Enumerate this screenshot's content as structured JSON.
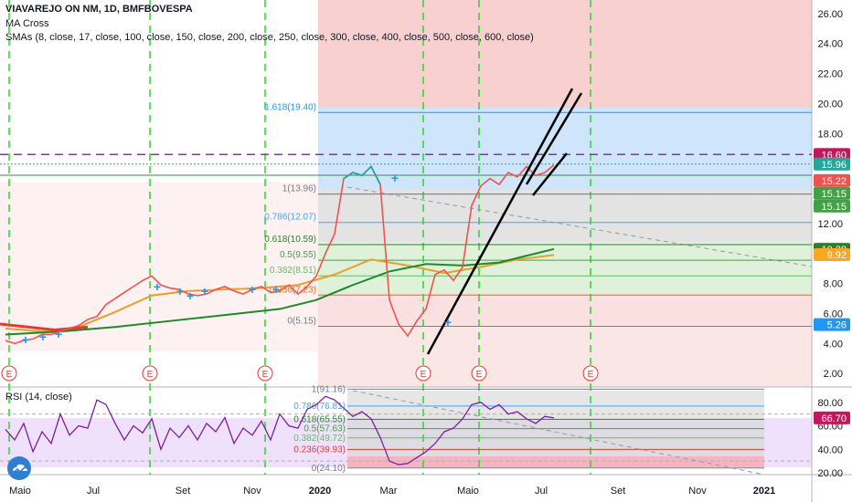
{
  "header": {
    "symbol_line": "VIAVAREJO ON NM, 1D, BMFBOVESPA",
    "indicator_1": "MA Cross",
    "indicator_2": "SMAs (8, close, 17, close, 100, close, 150, close, 200, close, 250, close, 300, close, 400, close, 500, close, 600, close)"
  },
  "rsi_panel": {
    "title": "RSI (14, close)"
  },
  "colors": {
    "price": "#26a69a",
    "price_red": "#ef5350",
    "sma_green": "#1b8a2c",
    "sma_orange": "#e8a02c",
    "fib_blue": "#2196f3",
    "earnings_dash": "#27d827",
    "purple_dash": "#9c27b0",
    "rsi_line": "#7b1fa2"
  },
  "icons": {
    "logo": "tradingview-cloud-icon"
  },
  "chart_data": [
    {
      "type": "line",
      "title": "VIAVAREJO ON NM, 1D, BMFBOVESPA",
      "x_ticks": [
        "Maio",
        "Jul",
        "Set",
        "Nov",
        "2020",
        "Mar",
        "Maio",
        "Jul",
        "Set",
        "Nov",
        "2021"
      ],
      "y_ticks": [
        "2.00",
        "4.00",
        "6.00",
        "8.00",
        "10.00",
        "12.00",
        "14.00",
        "16.00",
        "18.00",
        "20.00",
        "22.00",
        "24.00",
        "26.00"
      ],
      "ylim": [
        1.1,
        26.9
      ],
      "scale": "linear",
      "price_series": {
        "name": "Close",
        "x": [
          0,
          10,
          20,
          30,
          40,
          50,
          60,
          70,
          80,
          90,
          100,
          110,
          120,
          130,
          140,
          150,
          160,
          170,
          180,
          190,
          200,
          210,
          220,
          230,
          240,
          250,
          260,
          270,
          280,
          290,
          300,
          310,
          320,
          330,
          340,
          350,
          360,
          370,
          380,
          390,
          400,
          410,
          420,
          430,
          440,
          450,
          460,
          470,
          480,
          490,
          500,
          510,
          520,
          530,
          540,
          550,
          560,
          570,
          580,
          590,
          600
        ],
        "y": [
          4.2,
          4.0,
          4.2,
          4.3,
          4.6,
          4.6,
          4.8,
          5.0,
          5.2,
          5.6,
          5.8,
          6.6,
          7.0,
          7.4,
          7.8,
          8.2,
          8.5,
          7.9,
          7.7,
          7.6,
          7.3,
          7.2,
          7.3,
          7.6,
          7.8,
          7.5,
          7.3,
          7.6,
          7.8,
          7.4,
          7.5,
          7.9,
          7.3,
          7.8,
          8.5,
          10.0,
          11.3,
          15.0,
          15.4,
          15.2,
          15.8,
          14.6,
          6.9,
          5.3,
          4.5,
          5.5,
          6.3,
          8.6,
          8.9,
          8.2,
          9.1,
          13.2,
          14.5,
          15.0,
          14.6,
          15.4,
          15.1,
          15.8,
          15.2,
          15.4,
          15.9
        ]
      },
      "series": [
        {
          "name": "SMA 100",
          "x": [
            0,
            40,
            80,
            120,
            160,
            200,
            240,
            280,
            320,
            360,
            400,
            440,
            480,
            520,
            560,
            600
          ],
          "y": [
            5.0,
            4.8,
            5.1,
            6.1,
            7.2,
            7.5,
            7.6,
            7.7,
            7.9,
            8.6,
            9.6,
            9.2,
            8.7,
            9.1,
            9.6,
            9.9
          ]
        },
        {
          "name": "SMA 200",
          "x": [
            0,
            60,
            120,
            180,
            240,
            300,
            340,
            380,
            420,
            460,
            500,
            540,
            580,
            600
          ],
          "y": [
            4.6,
            4.8,
            5.1,
            5.5,
            5.9,
            6.3,
            6.9,
            7.9,
            8.8,
            9.3,
            9.2,
            9.4,
            10.0,
            10.3
          ]
        }
      ],
      "fibonacci_levels": [
        {
          "label": "1.618(19.40)",
          "value": 19.4
        },
        {
          "label": "1(13.96)",
          "value": 13.96
        },
        {
          "label": "0.786(12.07)",
          "value": 12.07
        },
        {
          "label": "0.618(10.59)",
          "value": 10.59
        },
        {
          "label": "0.5(9.55)",
          "value": 9.55
        },
        {
          "label": "0.382(8.51)",
          "value": 8.51
        },
        {
          "label": "0.236(7.23)",
          "value": 7.23
        },
        {
          "label": "0(5.15)",
          "value": 5.15
        }
      ],
      "price_labels": [
        "16.60",
        "15.96",
        "15.22",
        "15.15",
        "15.15",
        "10.28",
        "9.92",
        "5.26"
      ],
      "horizontal_lines": [
        16.6,
        15.96,
        15.22
      ],
      "earnings_marker": "E"
    },
    {
      "type": "line",
      "title": "RSI (14, close)",
      "y_ticks": [
        "20.00",
        "40.00",
        "60.00",
        "80.00"
      ],
      "ylim": [
        18.5,
        93.0
      ],
      "value_label": "66.70",
      "fibonacci_levels": [
        {
          "label": "1(91.16)",
          "value": 91.16
        },
        {
          "label": "0.786(76.81)",
          "value": 76.81
        },
        {
          "label": "0.618(65.55)",
          "value": 65.55
        },
        {
          "label": "0.5(57.63)",
          "value": 57.63
        },
        {
          "label": "0.382(49.72)",
          "value": 49.72
        },
        {
          "label": "0.236(39.93)",
          "value": 39.93
        },
        {
          "label": "0(24.10)",
          "value": 24.1
        }
      ],
      "series": [
        {
          "name": "RSI",
          "x": [
            0,
            10,
            20,
            30,
            40,
            50,
            60,
            70,
            80,
            90,
            100,
            110,
            120,
            130,
            140,
            150,
            160,
            170,
            180,
            190,
            200,
            210,
            220,
            230,
            240,
            250,
            260,
            270,
            280,
            290,
            300,
            310,
            320,
            330,
            340,
            350,
            360,
            370,
            380,
            390,
            400,
            410,
            420,
            430,
            440,
            450,
            460,
            470,
            480,
            490,
            500,
            510,
            520,
            530,
            540,
            550,
            560,
            570,
            580,
            590,
            600
          ],
          "y": [
            57,
            48,
            62,
            38,
            55,
            45,
            70,
            52,
            60,
            58,
            82,
            78,
            62,
            48,
            60,
            54,
            66,
            40,
            58,
            50,
            60,
            48,
            62,
            55,
            67,
            45,
            58,
            52,
            64,
            48,
            70,
            60,
            58,
            74,
            78,
            85,
            82,
            75,
            68,
            72,
            66,
            50,
            30,
            27,
            28,
            33,
            38,
            45,
            55,
            58,
            66,
            78,
            80,
            74,
            78,
            70,
            72,
            66,
            62,
            68,
            66.7
          ]
        }
      ]
    }
  ]
}
